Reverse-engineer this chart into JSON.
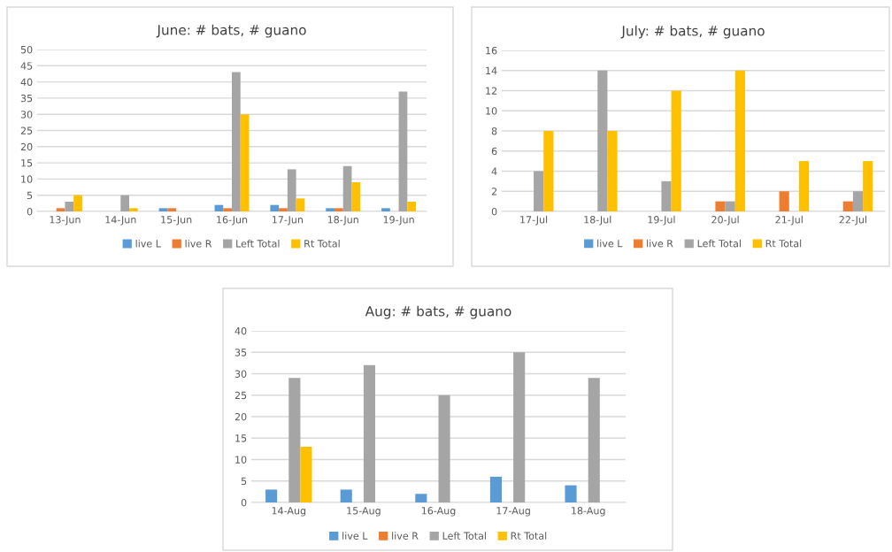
{
  "chart_data": [
    {
      "type": "bar",
      "title": "June: # bats, # guano",
      "categories": [
        "13-Jun",
        "14-Jun",
        "15-Jun",
        "16-Jun",
        "17-Jun",
        "18-Jun",
        "19-Jun"
      ],
      "series": [
        {
          "name": "live L",
          "color": "#5b9bd5",
          "values": [
            0,
            0,
            1,
            2,
            2,
            1,
            1
          ]
        },
        {
          "name": "live R",
          "color": "#ed7d31",
          "values": [
            1,
            0,
            1,
            1,
            1,
            1,
            0
          ]
        },
        {
          "name": "Left Total",
          "color": "#a5a5a5",
          "values": [
            3,
            5,
            0,
            43,
            13,
            14,
            37
          ]
        },
        {
          "name": "Rt Total",
          "color": "#ffc000",
          "values": [
            5,
            1,
            0,
            30,
            4,
            9,
            3
          ]
        }
      ],
      "ylim": [
        0,
        50
      ],
      "yticks": [
        0,
        5,
        10,
        15,
        20,
        25,
        30,
        35,
        40,
        45,
        50
      ],
      "grid": "y",
      "legend": "bottom"
    },
    {
      "type": "bar",
      "title": "July: # bats, # guano",
      "categories": [
        "17-Jul",
        "18-Jul",
        "19-Jul",
        "20-Jul",
        "21-Jul",
        "22-Jul"
      ],
      "series": [
        {
          "name": "live L",
          "color": "#5b9bd5",
          "values": [
            0,
            0,
            0,
            0,
            0,
            0
          ]
        },
        {
          "name": "live R",
          "color": "#ed7d31",
          "values": [
            0,
            0,
            0,
            1,
            2,
            1
          ]
        },
        {
          "name": "Left Total",
          "color": "#a5a5a5",
          "values": [
            4,
            14,
            3,
            1,
            0,
            2
          ]
        },
        {
          "name": "Rt Total",
          "color": "#ffc000",
          "values": [
            8,
            8,
            12,
            14,
            5,
            5
          ]
        }
      ],
      "ylim": [
        0,
        16
      ],
      "yticks": [
        0,
        2,
        4,
        6,
        8,
        10,
        12,
        14,
        16
      ],
      "grid": "y",
      "legend": "bottom"
    },
    {
      "type": "bar",
      "title": "Aug: # bats, # guano",
      "categories": [
        "14-Aug",
        "15-Aug",
        "16-Aug",
        "17-Aug",
        "18-Aug"
      ],
      "series": [
        {
          "name": "live L",
          "color": "#5b9bd5",
          "values": [
            3,
            3,
            2,
            6,
            4
          ]
        },
        {
          "name": "live R",
          "color": "#ed7d31",
          "values": [
            0,
            0,
            0,
            0,
            0
          ]
        },
        {
          "name": "Left Total",
          "color": "#a5a5a5",
          "values": [
            29,
            32,
            25,
            35,
            29
          ]
        },
        {
          "name": "Rt Total",
          "color": "#ffc000",
          "values": [
            13,
            0,
            0,
            0,
            0
          ]
        }
      ],
      "ylim": [
        0,
        40
      ],
      "yticks": [
        0,
        5,
        10,
        15,
        20,
        25,
        30,
        35,
        40
      ],
      "grid": "y",
      "legend": "bottom"
    }
  ]
}
